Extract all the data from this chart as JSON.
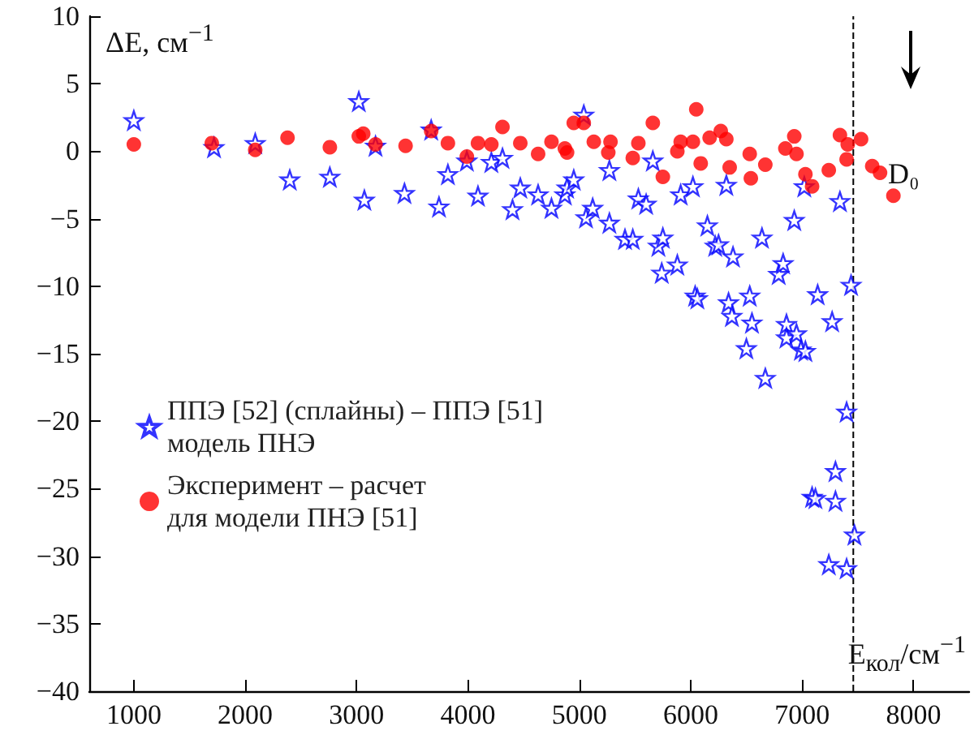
{
  "chart_data": {
    "type": "scatter",
    "xlabel": "E$_{кол}$/см$^{−1}$",
    "ylabel": "ΔE, см$^{−1}$",
    "xlim": [
      600,
      8500
    ],
    "xticks": [
      1000,
      2000,
      3000,
      4000,
      5000,
      6000,
      7000,
      8000
    ],
    "ylim": [
      -40,
      10
    ],
    "yticks": [
      -40,
      -35,
      -30,
      -25,
      -20,
      -15,
      -10,
      -5,
      0,
      5,
      10
    ],
    "grid": false,
    "legend": "left",
    "series": [
      {
        "name": "ППЭ [52] (сплайны) – ППЭ [51]\nмодель ПНЭ",
        "color": "#0000ff",
        "marker": "star",
        "x": [
          1000,
          1720,
          2090,
          2400,
          2760,
          3020,
          3070,
          3170,
          3430,
          3670,
          3740,
          3820,
          3990,
          4090,
          4210,
          4310,
          4400,
          4470,
          4630,
          4750,
          4870,
          4890,
          4950,
          5040,
          5060,
          5120,
          5270,
          5270,
          5410,
          5480,
          5530,
          5600,
          5660,
          5710,
          5740,
          5750,
          5880,
          5910,
          6020,
          6040,
          6060,
          6150,
          6220,
          6250,
          6320,
          6340,
          6370,
          6380,
          6500,
          6530,
          6550,
          6640,
          6670,
          6790,
          6830,
          6860,
          6860,
          6930,
          6950,
          6990,
          7020,
          7030,
          7090,
          7120,
          7140,
          7240,
          7270,
          7300,
          7300,
          7340,
          7400,
          7400,
          7440,
          7470
        ],
        "values": [
          2.3,
          0.3,
          0.6,
          -2.1,
          -1.9,
          3.7,
          -3.6,
          0.4,
          -3.1,
          1.6,
          -4.1,
          -1.7,
          -0.7,
          -3.3,
          -0.8,
          -0.5,
          -4.3,
          -2.7,
          -3.2,
          -4.2,
          -3.2,
          -2.7,
          -2.1,
          2.7,
          -4.9,
          -4.2,
          -5.3,
          -1.4,
          -6.5,
          -6.5,
          -3.5,
          -3.9,
          -0.7,
          -7,
          -9,
          -6.4,
          -8.4,
          -3.2,
          -2.6,
          -10.7,
          -10.9,
          -5.5,
          -7,
          -6.9,
          -2.5,
          -11.2,
          -12.2,
          -7.8,
          -14.6,
          -10.7,
          -12.7,
          -6.4,
          -16.8,
          -9.1,
          -8.3,
          -12.8,
          -13.8,
          -5.1,
          -13.5,
          -14.7,
          -2.6,
          -14.8,
          -25.6,
          -25.7,
          -10.6,
          -30.6,
          -12.6,
          -23.7,
          -25.9,
          -3.7,
          -19.3,
          -30.9,
          -9.9,
          -28.4
        ]
      },
      {
        "name": "Эксперимент – расчет\nдля модели ПНЭ [51]",
        "color": "#ff0000",
        "marker": "circle",
        "x": [
          1000,
          1700,
          2090,
          2380,
          2760,
          3020,
          3060,
          3170,
          3440,
          3670,
          3820,
          3990,
          4090,
          4210,
          4310,
          4470,
          4630,
          4750,
          4870,
          4890,
          4950,
          5040,
          5130,
          5260,
          5280,
          5480,
          5530,
          5660,
          5750,
          5880,
          5910,
          6020,
          6050,
          6090,
          6170,
          6270,
          6320,
          6350,
          6530,
          6540,
          6670,
          6850,
          6930,
          6950,
          7030,
          7090,
          7240,
          7340,
          7400,
          7410,
          7530,
          7630,
          7700,
          7820
        ],
        "values": [
          0.5,
          0.6,
          0.1,
          1,
          0.3,
          1.1,
          1.3,
          0.5,
          0.4,
          1.5,
          0.6,
          -0.4,
          0.6,
          0.5,
          1.8,
          0.6,
          -0.2,
          0.7,
          0.2,
          -0.1,
          2.1,
          2.1,
          0.7,
          -0.1,
          0.7,
          -0.5,
          0.6,
          2.1,
          -1.9,
          0,
          0.7,
          0.7,
          3.1,
          -0.9,
          1,
          1.5,
          0.9,
          -1.2,
          -0.2,
          -2,
          -1,
          0.2,
          1.1,
          -0.2,
          -1.7,
          -2.6,
          -1.4,
          1.2,
          -0.6,
          0.5,
          0.9,
          -1.1,
          -1.6,
          -3.3
        ]
      }
    ],
    "ref_lines": [
      {
        "axis": "x",
        "value": 7460,
        "label": null,
        "color": "#000000",
        "line_style": "dashed"
      }
    ],
    "annotations": [
      "D₀"
    ]
  }
}
